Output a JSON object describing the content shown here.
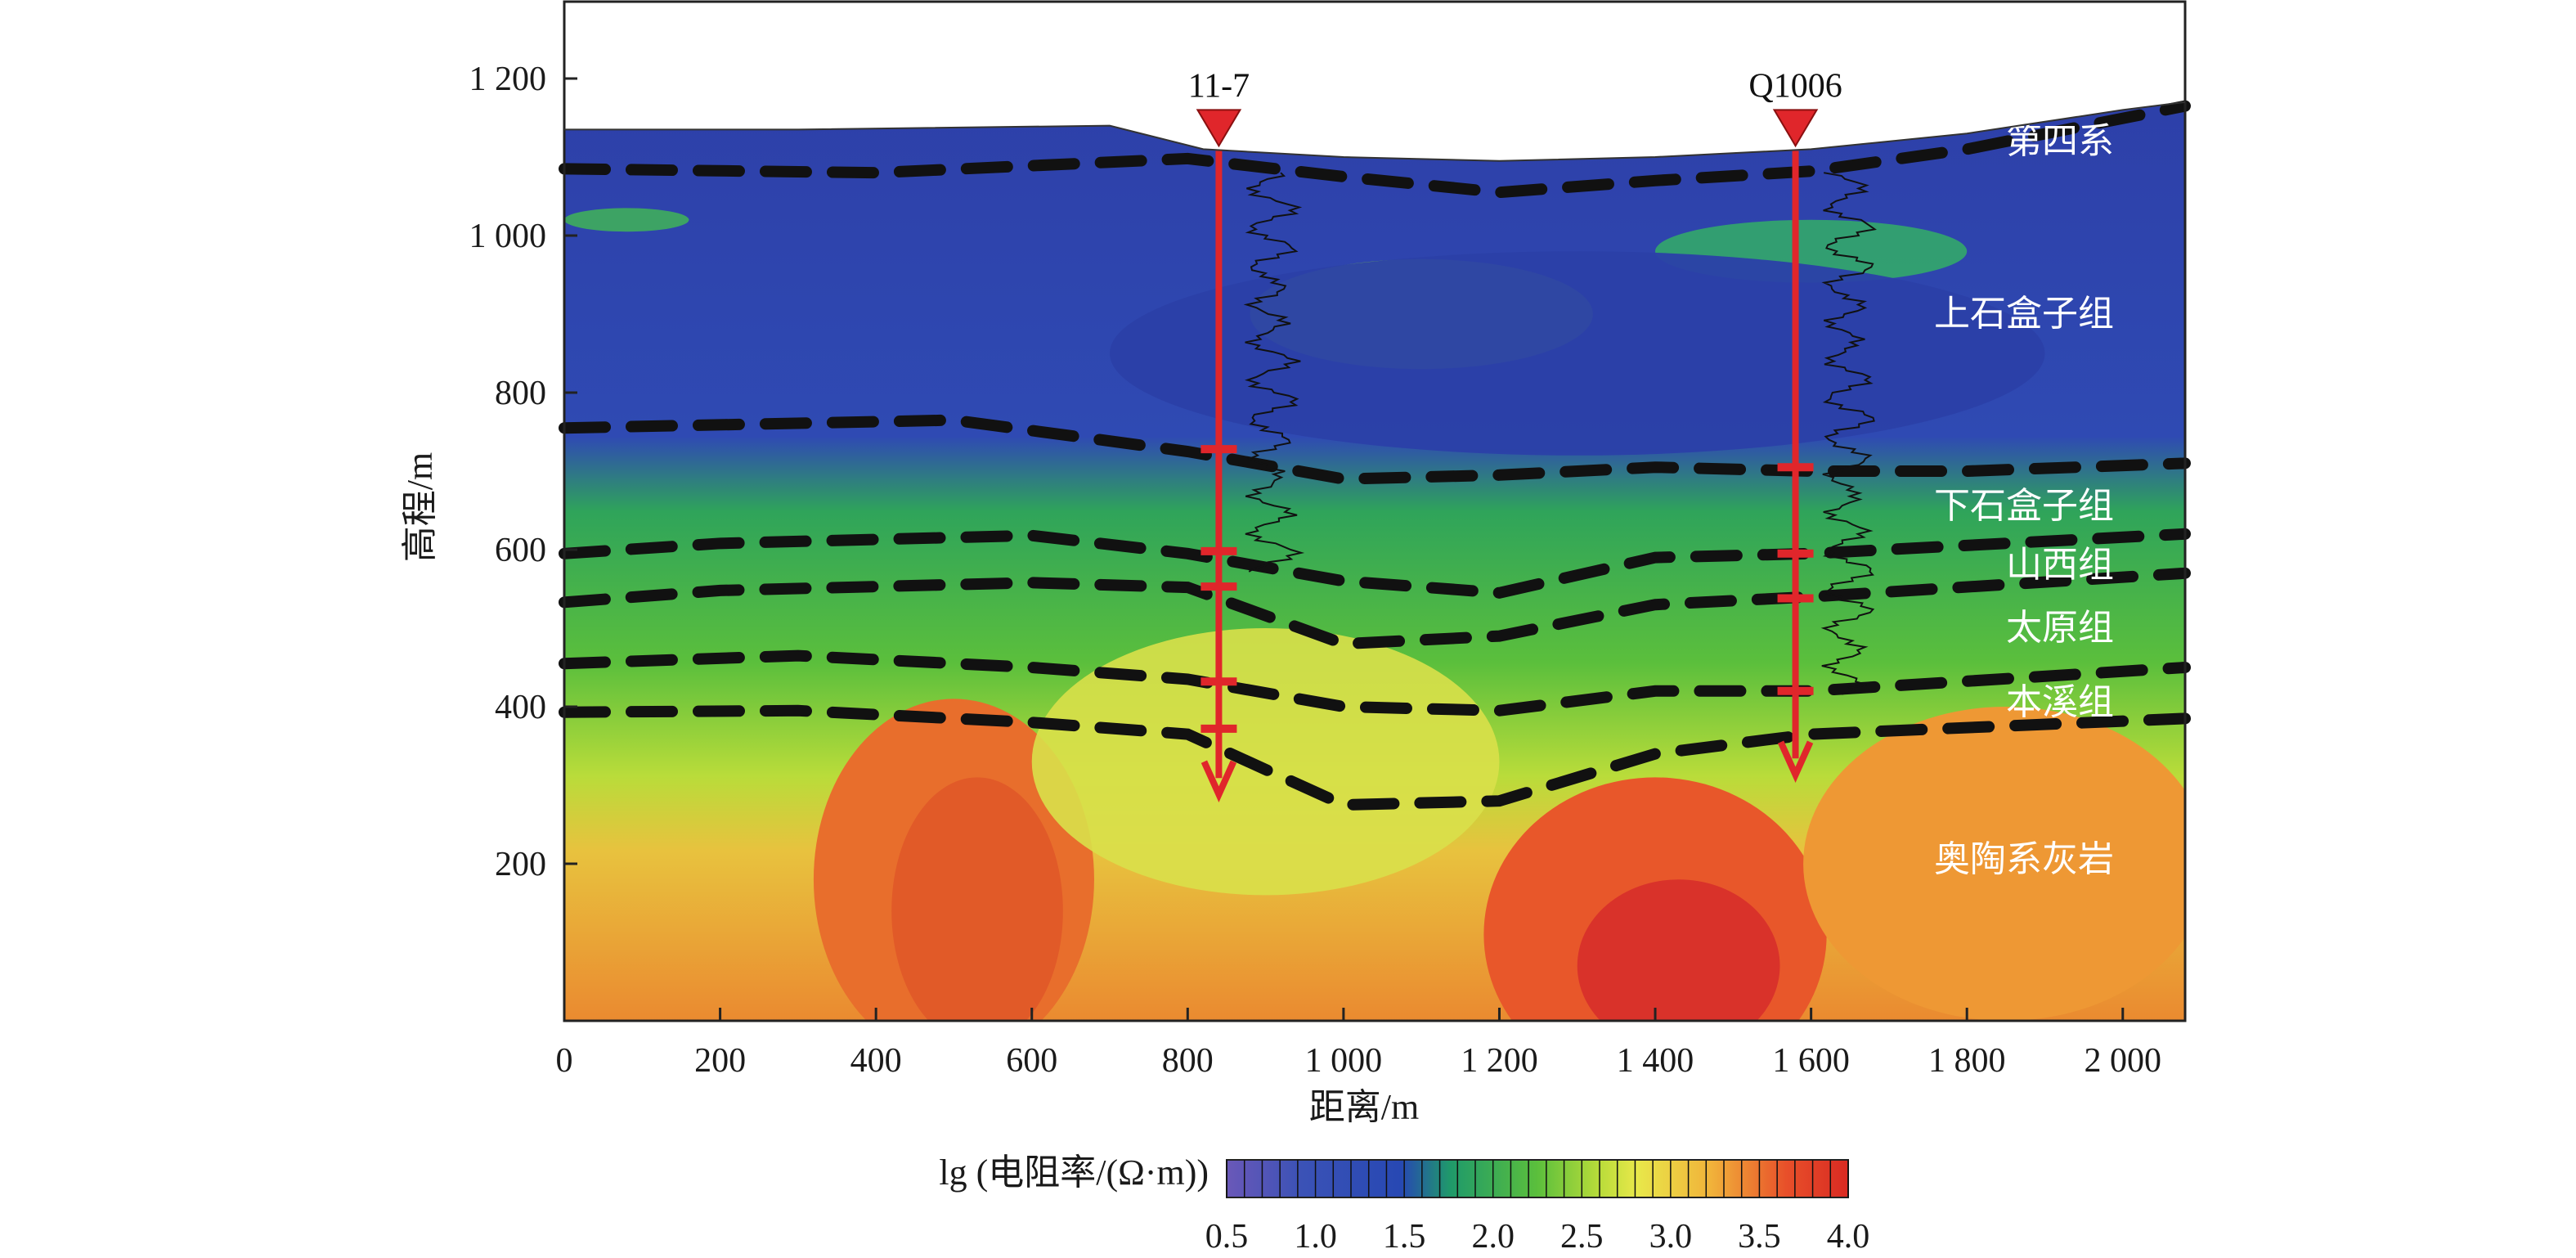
{
  "chart_data": {
    "type": "heatmap",
    "xlabel": "距离/m",
    "ylabel": "高程/m",
    "xlim": [
      0,
      2080
    ],
    "ylim": [
      0,
      1200
    ],
    "x_ticks": [
      0,
      200,
      400,
      600,
      800,
      1000,
      1200,
      1400,
      1600,
      1800,
      2000
    ],
    "x_tick_labels": [
      "0",
      "200",
      "400",
      "600",
      "800",
      "1 000",
      "1 200",
      "1 400",
      "1 600",
      "1 800",
      "2 000"
    ],
    "y_ticks": [
      200,
      400,
      600,
      800,
      1000,
      1200
    ],
    "y_tick_labels": [
      "200",
      "400",
      "600",
      "800",
      "1 000",
      "1 200"
    ],
    "surface_profile": [
      [
        0,
        1135
      ],
      [
        300,
        1135
      ],
      [
        700,
        1140
      ],
      [
        820,
        1110
      ],
      [
        1000,
        1100
      ],
      [
        1200,
        1095
      ],
      [
        1400,
        1100
      ],
      [
        1600,
        1110
      ],
      [
        1800,
        1130
      ],
      [
        2000,
        1160
      ],
      [
        2080,
        1170
      ]
    ],
    "resistivity_lg_field_note_values": {
      "colorbar_min": 0.5,
      "colorbar_max": 4.0,
      "colorbar_title": "lg (电阻率/(Ω·m))",
      "colorbar_ticks": [
        0.5,
        1.0,
        1.5,
        2.0,
        2.5,
        3.0,
        3.5,
        4.0
      ],
      "colorbar_tick_labels": [
        "0.5",
        "1.0",
        "1.5",
        "2.0",
        "2.5",
        "3.0",
        "3.5",
        "4.0"
      ]
    },
    "boundaries": [
      {
        "name": "第四系",
        "points": [
          [
            0,
            1085
          ],
          [
            400,
            1080
          ],
          [
            800,
            1098
          ],
          [
            1000,
            1075
          ],
          [
            1200,
            1055
          ],
          [
            1400,
            1070
          ],
          [
            1600,
            1082
          ],
          [
            1800,
            1110
          ],
          [
            2080,
            1165
          ]
        ]
      },
      {
        "name": "上石盒子组",
        "points": [
          [
            0,
            755
          ],
          [
            500,
            765
          ],
          [
            800,
            725
          ],
          [
            1000,
            690
          ],
          [
            1200,
            695
          ],
          [
            1400,
            705
          ],
          [
            1600,
            700
          ],
          [
            1800,
            700
          ],
          [
            2080,
            710
          ]
        ]
      },
      {
        "name": "下石盒子组",
        "points": [
          [
            0,
            595
          ],
          [
            200,
            608
          ],
          [
            600,
            618
          ],
          [
            800,
            595
          ],
          [
            1000,
            560
          ],
          [
            1200,
            545
          ],
          [
            1400,
            590
          ],
          [
            1600,
            595
          ],
          [
            2080,
            620
          ]
        ]
      },
      {
        "name": "山西组",
        "points": [
          [
            0,
            533
          ],
          [
            200,
            548
          ],
          [
            600,
            558
          ],
          [
            800,
            552
          ],
          [
            1000,
            480
          ],
          [
            1200,
            490
          ],
          [
            1400,
            530
          ],
          [
            1600,
            540
          ],
          [
            2080,
            570
          ]
        ]
      },
      {
        "name": "太原组",
        "points": [
          [
            0,
            455
          ],
          [
            300,
            465
          ],
          [
            600,
            450
          ],
          [
            800,
            435
          ],
          [
            1000,
            400
          ],
          [
            1200,
            395
          ],
          [
            1400,
            420
          ],
          [
            1600,
            420
          ],
          [
            2080,
            450
          ]
        ]
      },
      {
        "name": "本溪组",
        "points": [
          [
            0,
            393
          ],
          [
            300,
            395
          ],
          [
            600,
            380
          ],
          [
            800,
            365
          ],
          [
            1000,
            275
          ],
          [
            1200,
            280
          ],
          [
            1400,
            340
          ],
          [
            1600,
            365
          ],
          [
            2080,
            385
          ]
        ]
      }
    ],
    "layers": [
      {
        "label": "第四系",
        "y": 1120
      },
      {
        "label": "上石盒子组",
        "y": 900
      },
      {
        "label": "下石盒子组",
        "y": 655
      },
      {
        "label": "山西组",
        "y": 580
      },
      {
        "label": "太原组",
        "y": 500
      },
      {
        "label": "本溪组",
        "y": 405
      },
      {
        "label": "奥陶系灰岩",
        "y": 205
      }
    ],
    "wells": [
      {
        "name": "11-7",
        "x": 840,
        "top": 1108,
        "bottom": 330,
        "markers": [
          728,
          598,
          553,
          432,
          372
        ]
      },
      {
        "name": "Q1006",
        "x": 1580,
        "top": 1108,
        "bottom": 355,
        "markers": [
          705,
          595,
          538,
          420
        ]
      }
    ]
  }
}
